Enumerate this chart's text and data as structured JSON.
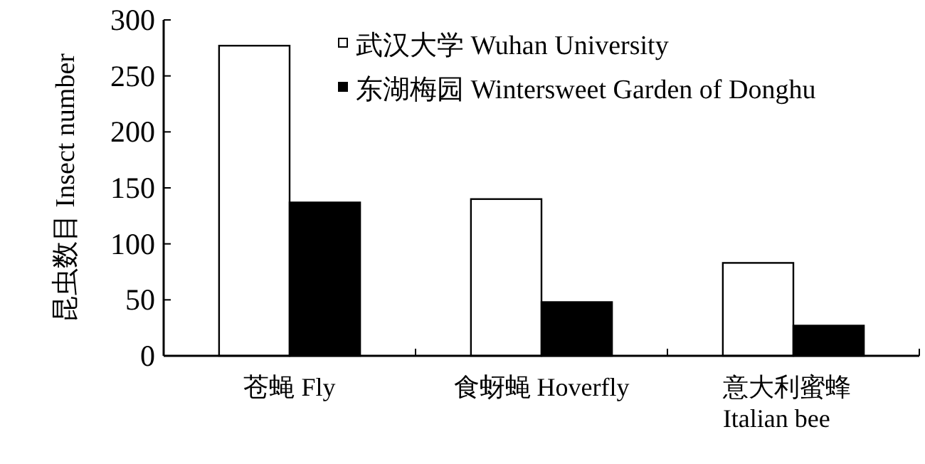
{
  "chart_data": {
    "type": "bar",
    "ylabel": "昆虫数目  Insect number",
    "categories": [
      "苍蝇  Fly",
      "食蚜蝇  Hoverfly",
      "意大利蜜蜂\nItalian bee"
    ],
    "series": [
      {
        "name": "武汉大学  Wuhan University",
        "color": "#ffffff",
        "values": [
          277,
          140,
          83
        ]
      },
      {
        "name": "东湖梅园  Wintersweet Garden of Donghu",
        "color": "#000000",
        "values": [
          137,
          48,
          27
        ]
      }
    ],
    "ylim": [
      0,
      300
    ],
    "yticks": [
      0,
      50,
      100,
      150,
      200,
      250,
      300
    ],
    "grid": false,
    "legend": "top right"
  }
}
